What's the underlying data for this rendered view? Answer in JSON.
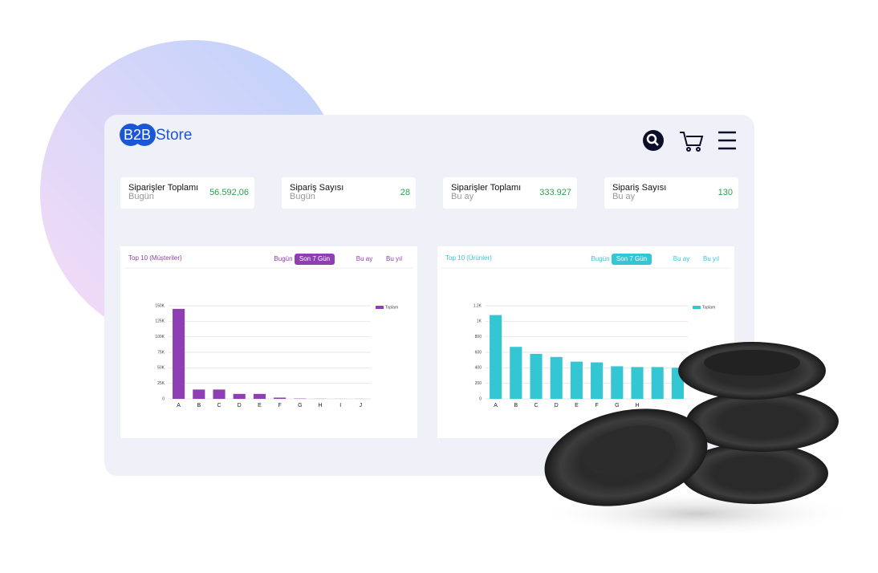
{
  "header": {
    "logo_mark": "B2B",
    "logo_text": "Store"
  },
  "stats": [
    {
      "label": "Siparişler Toplamı",
      "sub": "Bugün",
      "value": "56.592,06"
    },
    {
      "label": "Sipariş Sayısı",
      "sub": "Bugün",
      "value": "28"
    },
    {
      "label": "Siparişler Toplamı",
      "sub": "Bu ay",
      "value": "333.927"
    },
    {
      "label": "Sipariş Sayısı",
      "sub": "Bu ay",
      "value": "130"
    }
  ],
  "chart_data": [
    {
      "type": "bar",
      "title": "Top 10 (Müşteriler)",
      "filters": [
        "Bugün",
        "Son 7 Gün",
        "Bu ay",
        "Bu yıl"
      ],
      "active_filter": 1,
      "color": "#8e3fb3",
      "grid": true,
      "legend": "top-right",
      "series": [
        {
          "name": "Toplam",
          "color": "#8e3fb3",
          "values": [
            145000,
            15000,
            15000,
            8000,
            8000,
            2000,
            500,
            200,
            100,
            100
          ]
        }
      ],
      "categories": [
        "A",
        "B",
        "C",
        "D",
        "E",
        "F",
        "G",
        "H",
        "I",
        "J"
      ],
      "ylim": [
        0,
        150000
      ],
      "yticks": [
        0,
        {
          "value": 25000,
          "label": "25K"
        },
        {
          "value": 50000,
          "label": "50K"
        },
        {
          "value": 75000,
          "label": "75K"
        },
        {
          "value": 100000,
          "label": "100K"
        },
        {
          "value": 125000,
          "label": "125K"
        },
        {
          "value": 150000,
          "label": "150K"
        }
      ]
    },
    {
      "type": "bar",
      "title": "Top 10 (Ürünler)",
      "filters": [
        "Bugün",
        "Son 7 Gün",
        "Bu ay",
        "Bu yıl"
      ],
      "active_filter": 1,
      "color": "#35c6d3",
      "grid": true,
      "legend": "top-right",
      "series": [
        {
          "name": "Toplam",
          "color": "#35c6d3",
          "values": [
            1080,
            670,
            580,
            540,
            480,
            470,
            420,
            410,
            410,
            400
          ]
        }
      ],
      "categories": [
        "A",
        "B",
        "C",
        "D",
        "E",
        "F",
        "G",
        "H",
        null,
        null
      ],
      "ylim": [
        0,
        1200
      ],
      "yticks": [
        0,
        200,
        400,
        600,
        800,
        {
          "value": 1000,
          "label": "1K"
        },
        {
          "value": 1200,
          "label": "1.2K"
        }
      ]
    }
  ]
}
